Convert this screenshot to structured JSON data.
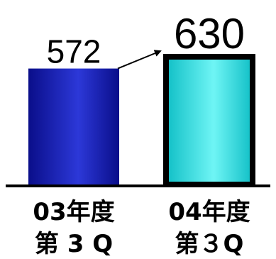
{
  "chart_data": {
    "type": "bar",
    "categories": [
      [
        "03年度",
        "第 3 Q"
      ],
      [
        "04年度",
        "第３Q"
      ]
    ],
    "values": [
      572,
      630
    ],
    "value_labels": [
      "572",
      "630"
    ],
    "ylim": [
      0,
      630
    ],
    "title": "",
    "xlabel": "",
    "ylabel": "",
    "grid": false,
    "legend": "none",
    "colors": {
      "bar1_light": "#2C38D8",
      "bar1_dark": "#0A0E8A",
      "bar2_light": "#6FF5F5",
      "bar2_dark": "#10BFC6",
      "outline": "#000000",
      "baseline": "#000000",
      "arrow": "#000000"
    },
    "annotations": [
      "arrow from 572 bar to 630 bar"
    ]
  }
}
